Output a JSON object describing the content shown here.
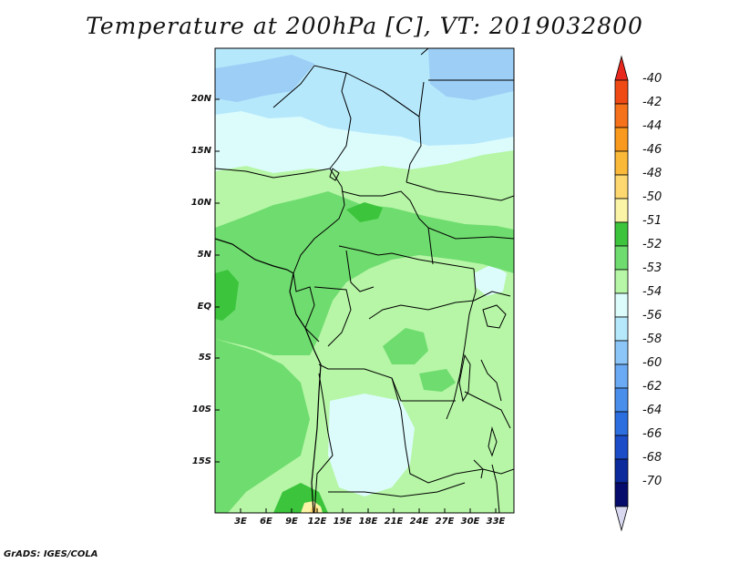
{
  "title": "Temperature at 200hPa [C], VT: 2019032800",
  "footer": "GrADS: IGES/COLA",
  "map": {
    "lat_labels": [
      "20N",
      "15N",
      "10N",
      "5N",
      "EQ",
      "5S",
      "10S",
      "15S"
    ],
    "lon_labels": [
      "3E",
      "6E",
      "9E",
      "12E",
      "15E",
      "18E",
      "21E",
      "24E",
      "27E",
      "30E",
      "33E"
    ]
  },
  "colorbar": {
    "levels": [
      "-40",
      "-42",
      "-44",
      "-46",
      "-48",
      "-50",
      "-51",
      "-52",
      "-53",
      "-54",
      "-56",
      "-58",
      "-60",
      "-62",
      "-64",
      "-66",
      "-68",
      "-70"
    ],
    "colors": [
      "#e8281e",
      "#f04a14",
      "#f5711a",
      "#f99a1e",
      "#fbb93a",
      "#fdd870",
      "#fbf4a6",
      "#3cc43c",
      "#6fdc6f",
      "#b6f6a6",
      "#dcfcfc",
      "#b6e8fc",
      "#8cc6f8",
      "#6aaaf4",
      "#4a8eec",
      "#2c6ee0",
      "#1c4cc8",
      "#0c2a9c",
      "#060c6c",
      "#d8d8f0"
    ]
  }
}
